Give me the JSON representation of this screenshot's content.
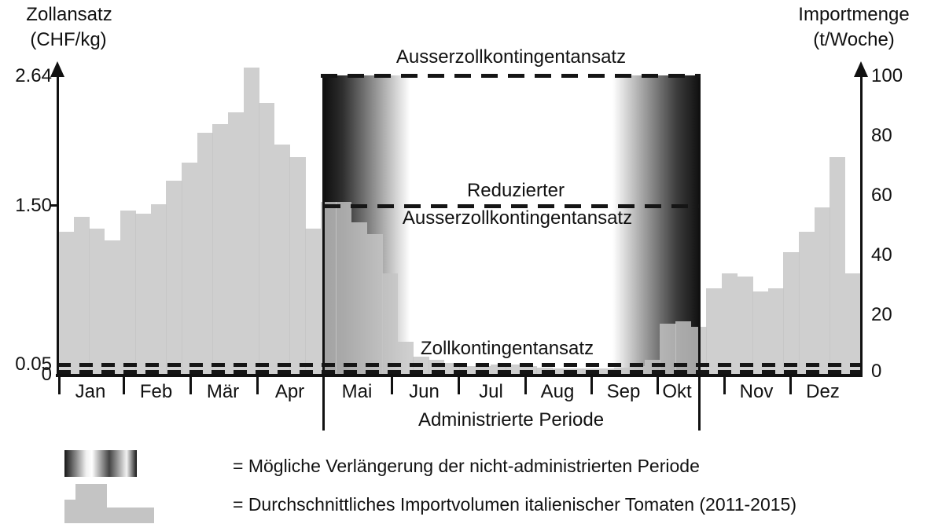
{
  "axis_left_title_line1": "Zollansatz",
  "axis_left_title_line2": "(CHF/kg)",
  "axis_right_title_line1": "Importmenge",
  "axis_right_title_line2": "(t/Woche)",
  "annotations": {
    "over_quota_rate": "Ausserzollkontingentansatz",
    "reduced_line1": "Reduzierter",
    "reduced_line2": "Ausserzollkontingentansatz",
    "quota_rate": "Zollkontingentansatz",
    "administered_period": "Administrierte Periode"
  },
  "legend": {
    "items": [
      {
        "swatch": "gradient-band",
        "label": "= Mögliche Verlängerung der nicht-administrierten Periode"
      },
      {
        "swatch": "gray-bars",
        "label": "= Durchschnittliches Importvolumen italienischer Tomaten (2011-2015)"
      }
    ]
  },
  "chart_data": {
    "type": "bar",
    "title": "",
    "x_axis": {
      "months": [
        "Jan",
        "Feb",
        "Mär",
        "Apr",
        "Mai",
        "Jun",
        "Jul",
        "Aug",
        "Sep",
        "Okt",
        "Nov",
        "Dez"
      ]
    },
    "y_left": {
      "label": "Zollansatz (CHF/kg)",
      "tick_labels": [
        "2.64",
        "1.50",
        "0.05",
        "0"
      ],
      "ticks": [
        2.64,
        1.5,
        0.05,
        0
      ],
      "range": [
        0,
        2.64
      ]
    },
    "y_right": {
      "label": "Importmenge (t/Woche)",
      "ticks": [
        100,
        80,
        60,
        40,
        20,
        0
      ],
      "range": [
        0,
        100
      ]
    },
    "series": [
      {
        "name": "Durchschnittliches Importvolumen italienischer Tomaten (2011-2015)",
        "unit": "t/Woche",
        "weeks_per_month": [
          4,
          4,
          5,
          4,
          4,
          5,
          4,
          4,
          5,
          4,
          4,
          5
        ],
        "weekly_values": [
          48,
          53,
          49,
          45,
          55,
          54,
          57,
          65,
          71,
          81,
          84,
          88,
          103,
          91,
          77,
          73,
          49,
          58,
          58,
          51,
          47,
          34,
          11,
          6,
          5,
          4,
          3,
          3,
          3.5,
          3.5,
          3,
          2.5,
          2,
          2,
          2,
          2,
          2.5,
          3,
          5,
          17,
          18,
          16,
          29,
          34,
          33,
          28,
          29,
          41,
          48,
          56,
          73,
          34
        ]
      }
    ],
    "tariff_lines": [
      {
        "name": "Ausserzollkontingentansatz",
        "value_chf_per_kg": 2.64,
        "style": "dashed",
        "span": "administered period only"
      },
      {
        "name": "Reduzierter Ausserzollkontingentansatz",
        "value_chf_per_kg": 1.5,
        "style": "dashed",
        "span": "administered period only"
      },
      {
        "name": "Zollkontingentansatz",
        "value_chf_per_kg": 0.05,
        "style": "dashed",
        "span": "full year"
      },
      {
        "name": "Nulllinie",
        "value_chf_per_kg": 0,
        "style": "dashed",
        "span": "full year"
      }
    ],
    "administered_period": {
      "label": "Administrierte Periode",
      "from_month": "Mai",
      "to_month": "Okt"
    },
    "legend_position": "bottom-left",
    "grid": false,
    "colors": {
      "bar_fill": "#c7c7c7",
      "line_color": "#151515",
      "gradient_dark": "#111111"
    }
  }
}
